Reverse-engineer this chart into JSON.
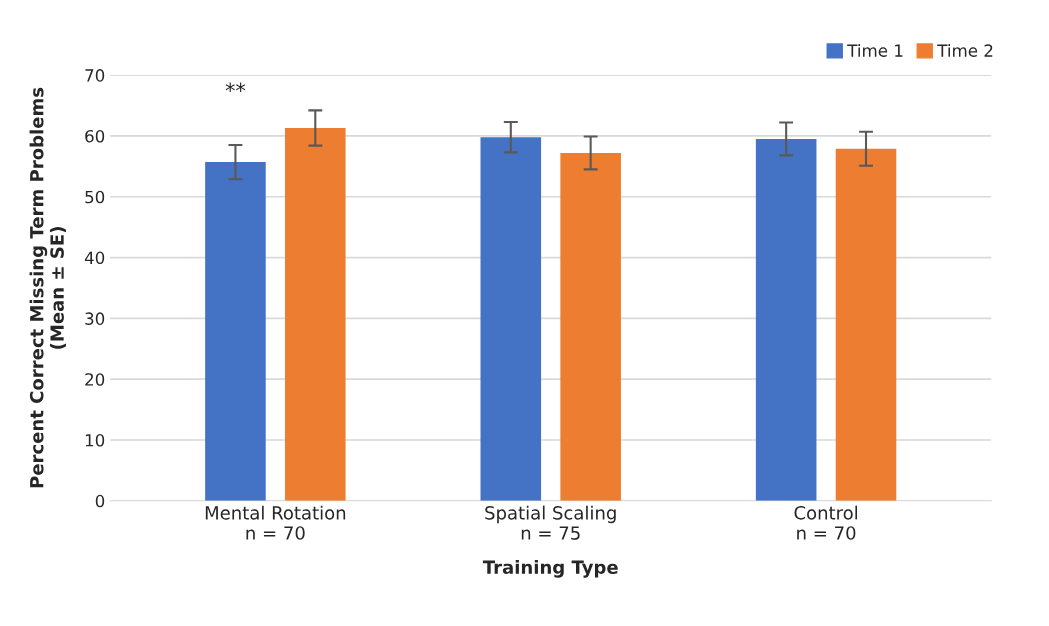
{
  "chart_data": {
    "type": "bar",
    "xlabel": "Training Type",
    "ylabel": "Percent Correct Missing Term Problems\n(Mean ± SE)",
    "categories": [
      "Mental Rotation\nn = 70",
      "Spatial Scaling\nn = 75",
      "Control\nn = 70"
    ],
    "series": [
      {
        "name": "Time 1",
        "color": "#4472c4",
        "values": [
          55.7,
          59.8,
          59.5
        ],
        "errors": [
          2.8,
          2.5,
          2.7
        ]
      },
      {
        "name": "Time 2",
        "color": "#ed7d31",
        "values": [
          61.3,
          57.2,
          57.9
        ],
        "errors": [
          2.9,
          2.7,
          2.8
        ]
      }
    ],
    "ylim": [
      0,
      70
    ],
    "yticks": [
      0,
      10,
      20,
      30,
      40,
      50,
      60,
      70
    ],
    "annotations": [
      "**"
    ],
    "grid": "y",
    "legend": "top right"
  }
}
